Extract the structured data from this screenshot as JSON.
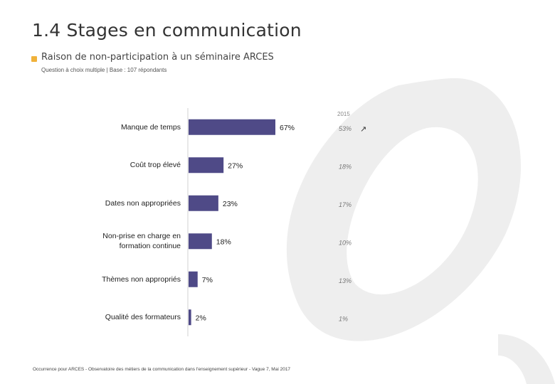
{
  "header": {
    "title": "1.4 Stages en communication",
    "subtitle": "Raison de non-participation à un séminaire ARCES",
    "note": "Question à choix multiple | Base : 107 répondants"
  },
  "footer": {
    "source": "Occurrence pour ARCES - Observatoire des métiers de la communication dans l'enseignement supérieur - Vague 7, Mai 2017"
  },
  "colors": {
    "bar": "#4f4a87",
    "accent": "#f0b23a",
    "watermark": "#eeeeee"
  },
  "chart_data": {
    "type": "bar",
    "orientation": "horizontal",
    "categories": [
      "Manque de temps",
      "Coût trop élevé",
      "Dates non appropriées",
      "Non-prise en charge en formation continue",
      "Thèmes non appropriés",
      "Qualité des formateurs"
    ],
    "category_lines": [
      [
        "Manque de temps"
      ],
      [
        "Coût trop élevé"
      ],
      [
        "Dates non appropriées"
      ],
      [
        "Non-prise en charge en",
        "formation continue"
      ],
      [
        "Thèmes non appropriés"
      ],
      [
        "Qualité des formateurs"
      ]
    ],
    "values": [
      67,
      27,
      23,
      18,
      7,
      2
    ],
    "value_labels": [
      "67%",
      "27%",
      "23%",
      "18%",
      "7%",
      "2%"
    ],
    "comparison": {
      "label": "2015",
      "values": [
        53,
        18,
        17,
        10,
        13,
        1
      ],
      "value_labels": [
        "53%",
        "18%",
        "17%",
        "10%",
        "13%",
        "1%"
      ],
      "trend_marker": "↗"
    },
    "xlim": [
      0,
      100
    ],
    "grid": false
  }
}
